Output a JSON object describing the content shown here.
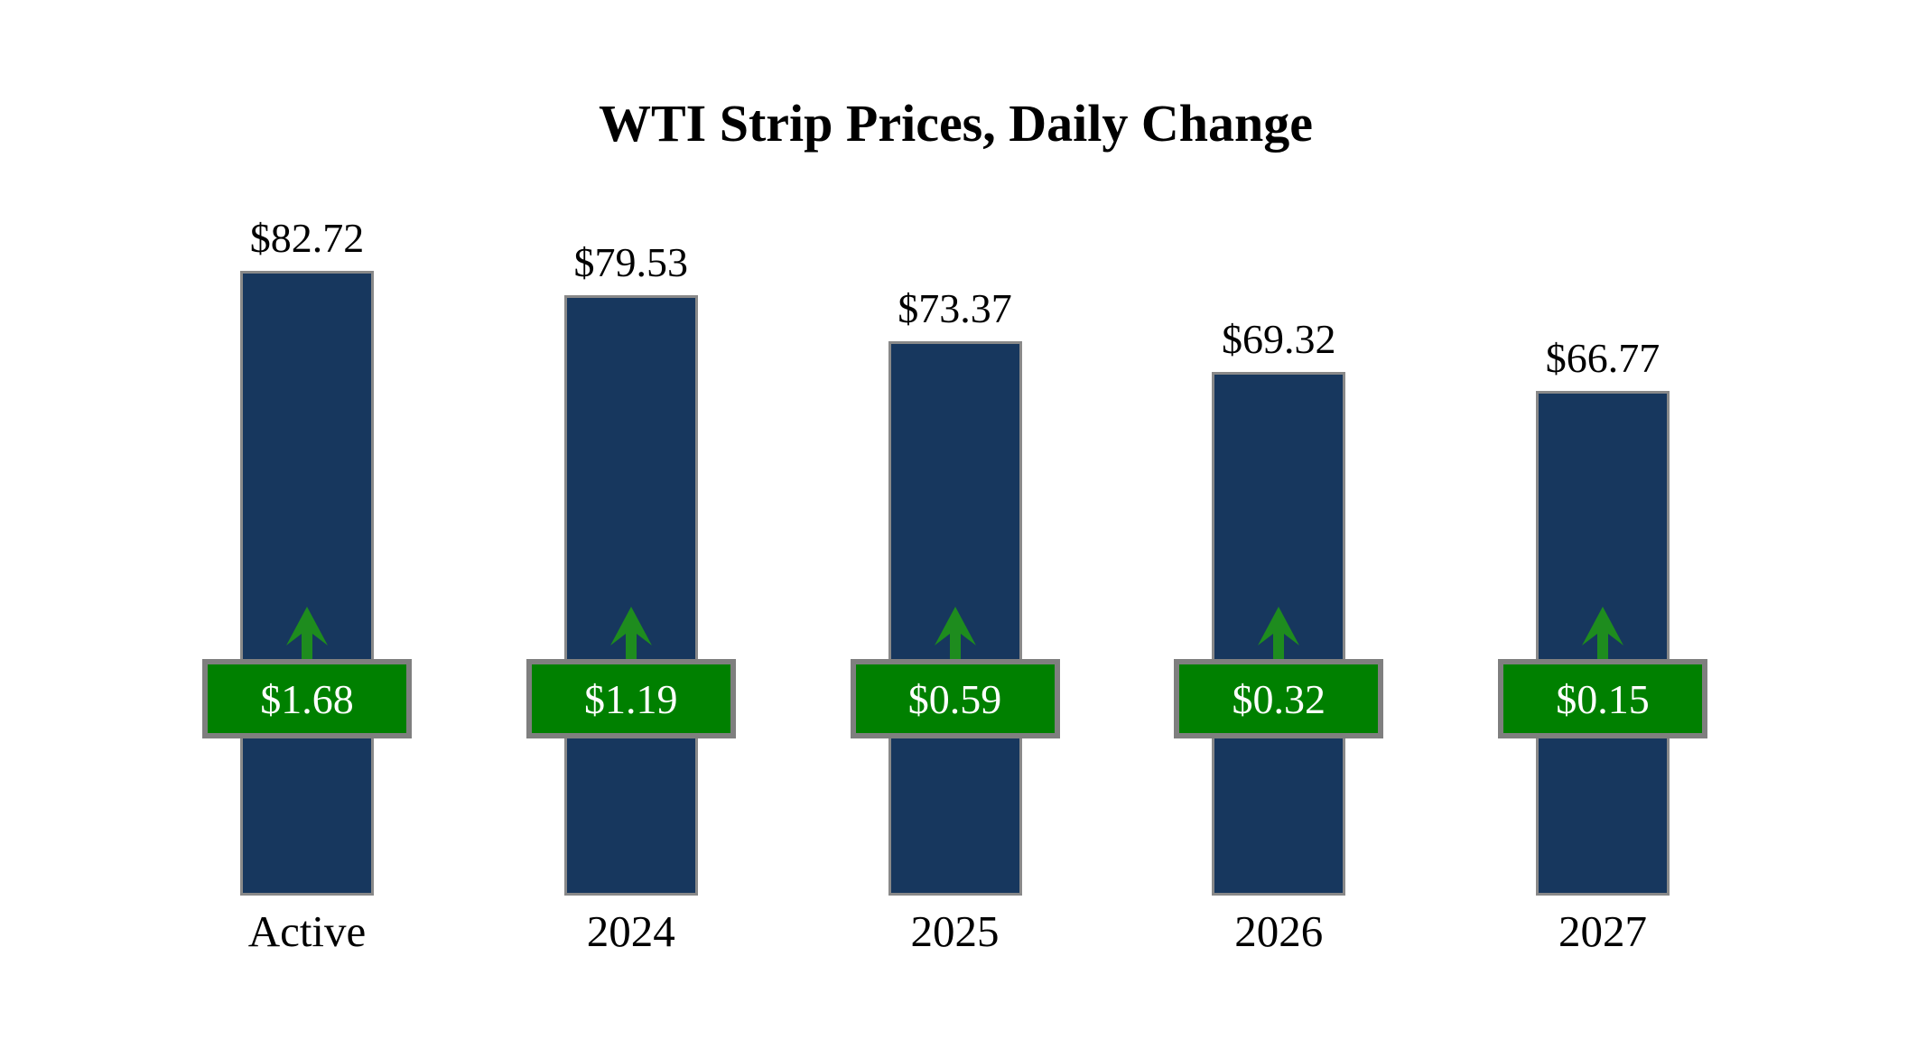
{
  "page": {
    "background": "#FFFFFF"
  },
  "chart_data": {
    "type": "bar",
    "title": "WTI Strip Prices, Daily Change",
    "categories": [
      "Active",
      "2024",
      "2025",
      "2026",
      "2027"
    ],
    "series": [
      {
        "name": "Strip Price",
        "values": [
          82.72,
          79.53,
          73.37,
          69.32,
          66.77
        ],
        "labels": [
          "$82.72",
          "$79.53",
          "$73.37",
          "$69.32",
          "$66.77"
        ]
      },
      {
        "name": "Daily Change",
        "values": [
          1.68,
          1.19,
          0.59,
          0.32,
          0.15
        ],
        "labels": [
          "$1.68",
          "$1.19",
          "$0.59",
          "$0.32",
          "$0.15"
        ],
        "direction": "up"
      }
    ],
    "ylim": [
      0,
      82.72
    ],
    "axes_visible": false,
    "grid": false,
    "legend": false,
    "colors": {
      "bar": "#17375E",
      "bar_border": "#898989",
      "badge": "#008000",
      "badge_border": "#7F7F7F",
      "arrow": "#1E8C1E",
      "value_text": "#000000",
      "badge_text": "#FFFFFF"
    }
  }
}
